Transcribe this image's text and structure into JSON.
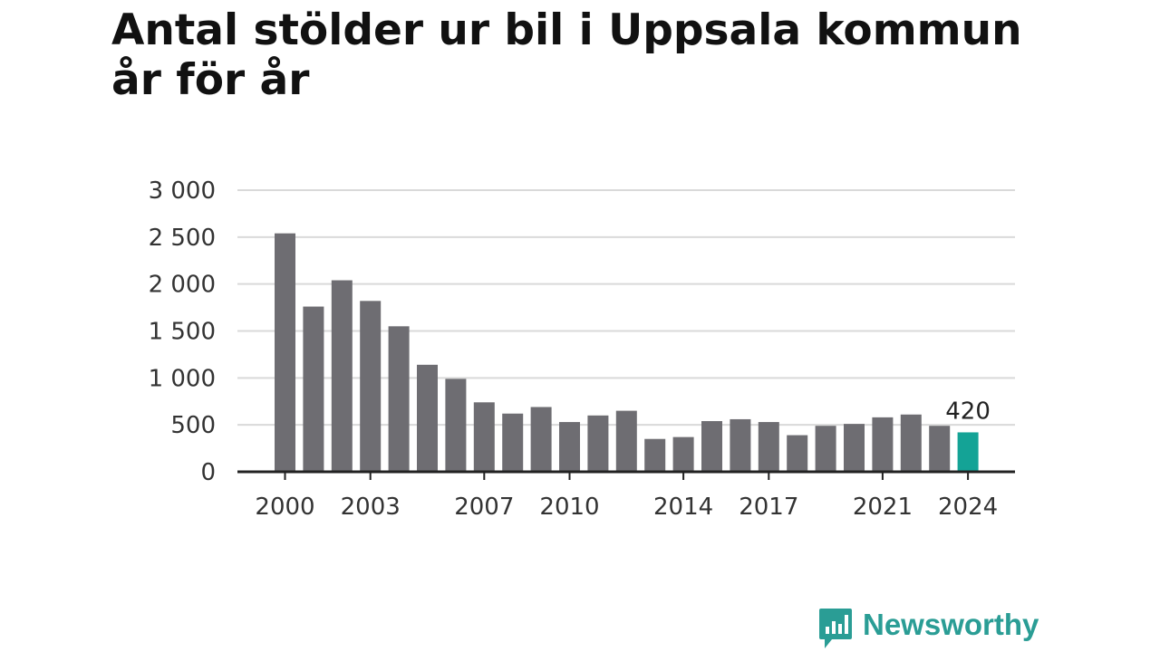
{
  "title": "Antal stölder ur bil i Uppsala kommun år för år",
  "brand": "Newsworthy",
  "colors": {
    "bar": "#6e6d72",
    "highlight": "#14a396",
    "grid": "#d9d9d9",
    "axis": "#222222",
    "brand": "#2a9d95"
  },
  "chart_data": {
    "type": "bar",
    "title": "Antal stölder ur bil i Uppsala kommun år för år",
    "xlabel": "",
    "ylabel": "",
    "categories": [
      "2000",
      "2001",
      "2002",
      "2003",
      "2004",
      "2005",
      "2006",
      "2007",
      "2008",
      "2009",
      "2010",
      "2011",
      "2012",
      "2013",
      "2014",
      "2015",
      "2016",
      "2017",
      "2018",
      "2019",
      "2020",
      "2021",
      "2022",
      "2023",
      "2024"
    ],
    "values": [
      2540,
      1760,
      2040,
      1820,
      1550,
      1140,
      990,
      740,
      620,
      690,
      530,
      600,
      650,
      350,
      370,
      540,
      560,
      530,
      390,
      490,
      510,
      580,
      610,
      490,
      420
    ],
    "x_tick_labels": [
      "2000",
      "2003",
      "2007",
      "2010",
      "2014",
      "2017",
      "2021",
      "2024"
    ],
    "y_ticks": [
      0,
      500,
      1000,
      1500,
      2000,
      2500,
      3000
    ],
    "y_tick_labels": [
      "0",
      "500",
      "1 000",
      "1 500",
      "2 000",
      "2 500",
      "3 000"
    ],
    "ylim": [
      0,
      3000
    ],
    "highlight": {
      "category": "2024",
      "label": "420"
    },
    "grid": true,
    "legend": "none"
  }
}
